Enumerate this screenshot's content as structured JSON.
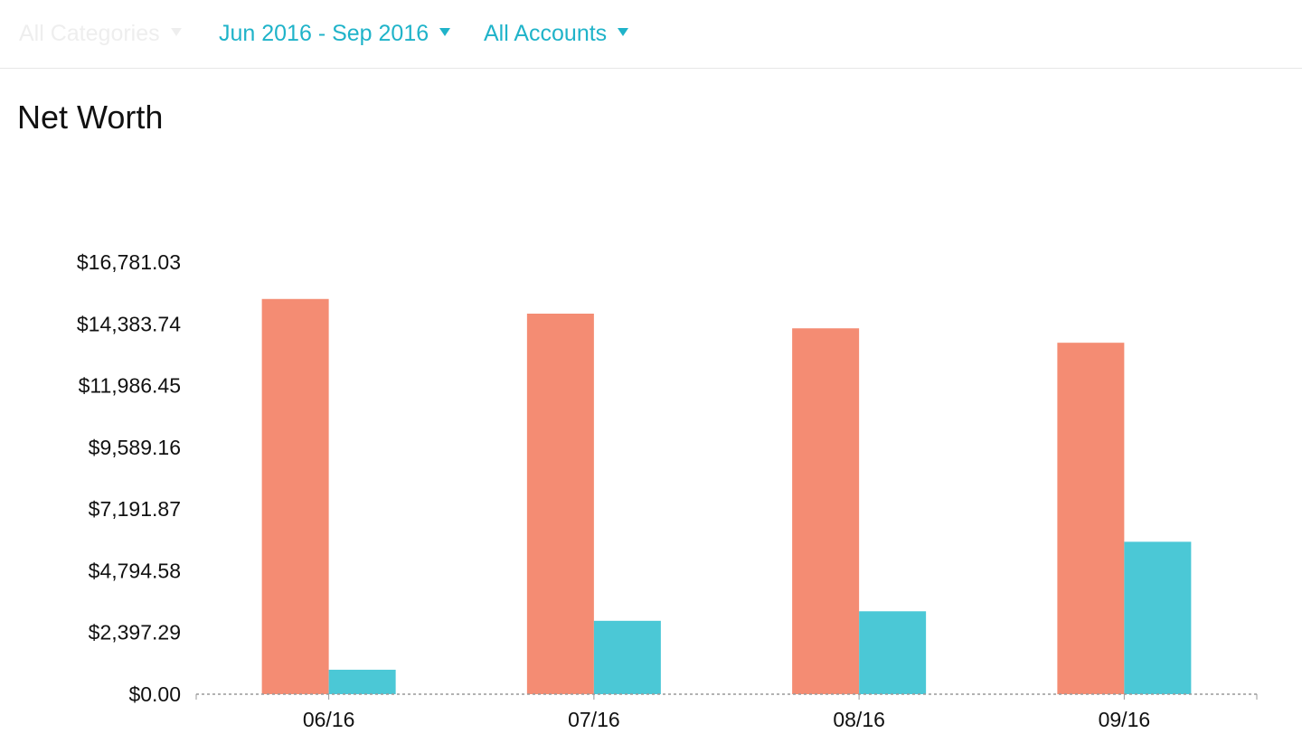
{
  "filters": {
    "categories": {
      "label": "All Categories",
      "enabled": false
    },
    "date_range": {
      "label": "Jun 2016 - Sep 2016",
      "enabled": true
    },
    "accounts": {
      "label": "All Accounts",
      "enabled": true
    }
  },
  "page": {
    "title": "Net Worth"
  },
  "colors": {
    "accent": "#1fb3c9",
    "series_a": "#f48c73",
    "series_b": "#4bc8d6"
  },
  "chart_data": {
    "type": "bar",
    "title": "Net Worth",
    "xlabel": "",
    "ylabel": "",
    "categories": [
      "06/16",
      "07/16",
      "08/16",
      "09/16"
    ],
    "series": [
      {
        "color": "#f48c73",
        "values": [
          15350,
          14780,
          14210,
          13650
        ]
      },
      {
        "color": "#4bc8d6",
        "values": [
          950,
          2850,
          3220,
          5920
        ]
      }
    ],
    "y_ticks": [
      "$0.00",
      "$2,397.29",
      "$4,794.58",
      "$7,191.87",
      "$9,589.16",
      "$11,986.45",
      "$14,383.74",
      "$16,781.03"
    ],
    "ylim": [
      0,
      16781.03
    ],
    "grid": false,
    "legend": "none"
  }
}
